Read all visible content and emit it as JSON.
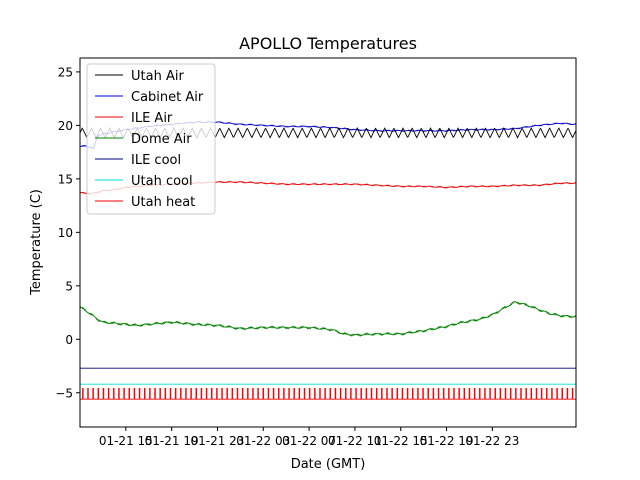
{
  "chart_data": {
    "type": "line",
    "title": "APOLLO Temperatures",
    "xlabel": "Date (GMT)",
    "ylabel": "Temperature (C)",
    "grid": false,
    "legend_position": "top-left",
    "xlim": [
      0,
      43.3
    ],
    "ylim": [
      -8.2,
      26.3
    ],
    "x_time_unit": "hours since 01-21 11:00",
    "x_ticks": [
      {
        "value": 4,
        "label": "01-21 15"
      },
      {
        "value": 8,
        "label": "01-21 19"
      },
      {
        "value": 12,
        "label": "01-21 23"
      },
      {
        "value": 16,
        "label": "01-22 03"
      },
      {
        "value": 20,
        "label": "01-22 07"
      },
      {
        "value": 24,
        "label": "01-22 11"
      },
      {
        "value": 28,
        "label": "01-22 15"
      },
      {
        "value": 32,
        "label": "01-22 19"
      },
      {
        "value": 36,
        "label": "01-22 23"
      }
    ],
    "y_ticks": [
      {
        "value": -5,
        "label": "−5"
      },
      {
        "value": 0,
        "label": "0"
      },
      {
        "value": 5,
        "label": "5"
      },
      {
        "value": 10,
        "label": "10"
      },
      {
        "value": 15,
        "label": "15"
      },
      {
        "value": 20,
        "label": "20"
      },
      {
        "value": 25,
        "label": "25"
      }
    ],
    "series": [
      {
        "name": "Utah Air",
        "color": "#000000",
        "style": "oscillating",
        "mean": 19.3,
        "amplitude": 0.45,
        "period_hours": 0.8,
        "x": [
          0,
          43.3
        ],
        "y": [
          19.3,
          19.3
        ]
      },
      {
        "name": "Cabinet Air",
        "color": "#0000cc",
        "x": [
          0,
          0.5,
          1.2,
          1.5,
          2,
          3,
          4,
          6,
          8,
          10,
          12,
          14,
          16,
          18,
          20,
          22,
          24,
          26,
          28,
          30,
          32,
          34,
          36,
          38,
          40,
          42,
          43.3
        ],
        "y": [
          18.0,
          18.1,
          17.8,
          19.0,
          19.2,
          19.4,
          19.6,
          19.9,
          20.1,
          20.3,
          20.3,
          20.1,
          20.0,
          19.9,
          19.9,
          19.8,
          19.6,
          19.5,
          19.5,
          19.5,
          19.5,
          19.6,
          19.6,
          19.7,
          20.0,
          20.2,
          20.1
        ]
      },
      {
        "name": "ILE Air",
        "color": "#ee0000",
        "x": [
          0,
          1,
          2,
          3,
          4,
          6,
          8,
          10,
          12,
          14,
          16,
          18,
          20,
          22,
          24,
          26,
          28,
          30,
          32,
          34,
          36,
          38,
          40,
          42,
          43.3
        ],
        "y": [
          13.7,
          13.6,
          13.9,
          14.0,
          14.2,
          14.4,
          14.5,
          14.6,
          14.7,
          14.7,
          14.6,
          14.5,
          14.5,
          14.5,
          14.5,
          14.4,
          14.3,
          14.3,
          14.2,
          14.3,
          14.3,
          14.4,
          14.4,
          14.6,
          14.6
        ]
      },
      {
        "name": "Dome Air",
        "color": "#008000",
        "x": [
          0,
          0.5,
          1,
          1.5,
          2,
          3,
          4,
          5,
          6,
          8,
          10,
          12,
          14,
          16,
          18,
          20,
          21,
          22,
          23,
          24,
          26,
          28,
          30,
          32,
          33,
          34,
          35,
          36,
          37,
          38,
          39,
          40,
          41,
          42,
          43.3
        ],
        "y": [
          3.0,
          2.7,
          2.3,
          1.9,
          1.6,
          1.5,
          1.4,
          1.3,
          1.4,
          1.6,
          1.4,
          1.3,
          1.0,
          1.1,
          1.1,
          1.1,
          1.0,
          0.9,
          0.5,
          0.4,
          0.5,
          0.5,
          0.8,
          1.2,
          1.5,
          1.7,
          1.9,
          2.3,
          2.9,
          3.5,
          3.2,
          2.8,
          2.4,
          2.2,
          2.1
        ]
      },
      {
        "name": "ILE cool",
        "color": "#000080",
        "x": [
          0,
          43.3
        ],
        "y": [
          -2.7,
          -2.7
        ]
      },
      {
        "name": "Utah cool",
        "color": "#00dddd",
        "x": [
          0,
          43.3
        ],
        "y": [
          -4.2,
          -4.2
        ]
      },
      {
        "name": "Utah heat",
        "color": "#ff0000",
        "style": "pulses",
        "base": -5.6,
        "top": -4.6,
        "pulse_spacing_hours": 0.45,
        "x": [
          0,
          43.3
        ],
        "y": [
          -5.6,
          -5.6
        ]
      }
    ]
  }
}
